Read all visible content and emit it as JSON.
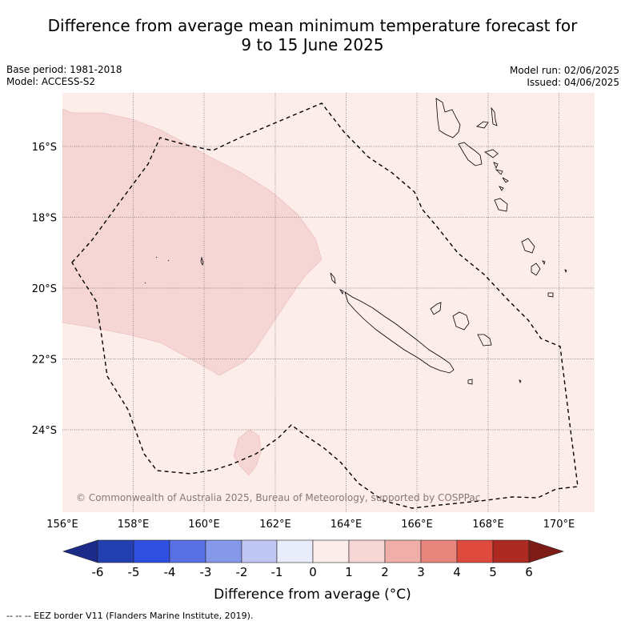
{
  "title": {
    "line1": "Difference from average mean minimum temperature forecast for",
    "line2": "9 to 15 June 2025"
  },
  "meta": {
    "base_period": "Base period: 1981-2018",
    "model": "Model: ACCESS-S2",
    "model_run": "Model run: 02/06/2025",
    "issued": "Issued: 04/06/2025"
  },
  "map": {
    "lon_ticks": [
      "156°E",
      "158°E",
      "160°E",
      "162°E",
      "164°E",
      "166°E",
      "168°E",
      "170°E"
    ],
    "lat_ticks": [
      "16°S",
      "18°S",
      "20°S",
      "22°S",
      "24°S"
    ],
    "copyright": "© Commonwealth of Australia 2025, Bureau of Meteorology, supported by COSPPac",
    "colors": {
      "background_anomaly_0_1": "#fcecea",
      "anomaly_1_2": "#f6d6d4",
      "land_outline": "#000000",
      "eez_border": "#000000",
      "grid": "#777777"
    }
  },
  "colorbar": {
    "labels": [
      "-6",
      "-5",
      "-4",
      "-3",
      "-2",
      "-1",
      "0",
      "1",
      "2",
      "3",
      "4",
      "5",
      "6"
    ],
    "colors": [
      "#1c2a8a",
      "#2340b0",
      "#2e4fe0",
      "#5870e4",
      "#8598ea",
      "#c0c7f3",
      "#e9ecfa",
      "#fcecea",
      "#f6d6d4",
      "#f0aea8",
      "#e8867e",
      "#de4a3e",
      "#ad2a22",
      "#7d1c16"
    ],
    "title": "Difference from average (°C)"
  },
  "footer": {
    "legend": "-- -- -- EEZ border V11 (Flanders Marine Institute, 2019)."
  }
}
